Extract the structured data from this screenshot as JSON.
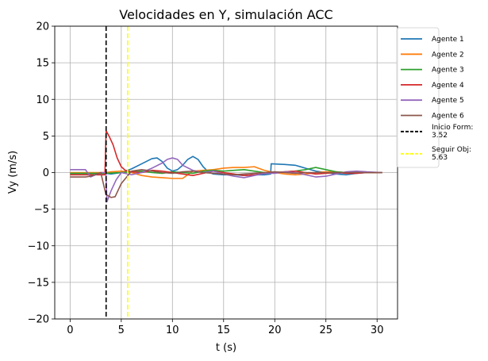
{
  "chart_data": {
    "type": "line",
    "title": "Velocidades en Y, simulación ACC",
    "xlabel": "t (s)",
    "ylabel": "Vy (m/s)",
    "xlim": [
      -1.5,
      32
    ],
    "ylim": [
      -20,
      20
    ],
    "xticks": [
      0,
      5,
      10,
      15,
      20,
      25,
      30
    ],
    "yticks": [
      -20,
      -15,
      -10,
      -5,
      0,
      5,
      10,
      15,
      20
    ],
    "xtick_labels": [
      "0",
      "5",
      "10",
      "15",
      "20",
      "25",
      "30"
    ],
    "ytick_labels": [
      "−20",
      "−15",
      "−10",
      "−5",
      "0",
      "5",
      "10",
      "15",
      "20"
    ],
    "grid": true,
    "legend_position": "outside-right-top",
    "series": [
      {
        "name": "Agente 1",
        "color": "#1f77b4",
        "x": [
          0,
          3.5,
          4.0,
          5.0,
          6.0,
          7.0,
          8.0,
          8.5,
          9.0,
          9.5,
          10.0,
          10.5,
          11.0,
          11.5,
          12.0,
          12.5,
          13.0,
          13.5,
          14.0,
          15.0,
          16.0,
          17.0,
          18.0,
          19.0,
          19.6,
          19.65,
          21.0,
          22.0,
          23.0,
          24.0,
          25.0,
          26.0,
          27.0,
          28.0,
          29.0,
          30.5
        ],
        "y": [
          -0.1,
          -0.1,
          -0.2,
          0.0,
          0.5,
          1.2,
          1.9,
          2.0,
          1.5,
          0.6,
          0.2,
          0.4,
          1.0,
          1.8,
          2.2,
          1.8,
          0.8,
          0.1,
          -0.2,
          -0.3,
          -0.3,
          -0.4,
          -0.3,
          -0.3,
          -0.2,
          1.2,
          1.1,
          1.0,
          0.6,
          0.2,
          0.0,
          -0.2,
          -0.3,
          -0.1,
          0.0,
          0.0
        ]
      },
      {
        "name": "Agente 2",
        "color": "#ff7f0e",
        "x": [
          0,
          3.5,
          4.0,
          5.0,
          6.0,
          7.0,
          8.0,
          9.0,
          10.0,
          11.0,
          12.0,
          13.0,
          14.0,
          15.0,
          16.0,
          17.0,
          18.0,
          19.0,
          20.0,
          21.0,
          22.0,
          23.0,
          24.0,
          25.0,
          26.0,
          27.0,
          28.0,
          29.0,
          30.5
        ],
        "y": [
          0.0,
          0.0,
          0.1,
          0.2,
          0.0,
          -0.4,
          -0.6,
          -0.7,
          -0.8,
          -0.8,
          0.2,
          0.3,
          0.4,
          0.6,
          0.7,
          0.7,
          0.8,
          0.3,
          0.0,
          -0.2,
          -0.3,
          -0.2,
          0.0,
          0.1,
          0.1,
          0.0,
          0.0,
          0.0,
          0.0
        ]
      },
      {
        "name": "Agente 3",
        "color": "#2ca02c",
        "x": [
          0,
          3.5,
          5.0,
          6.0,
          7.0,
          8.0,
          9.0,
          10.0,
          11.0,
          12.0,
          13.0,
          14.0,
          15.0,
          16.0,
          17.0,
          18.0,
          19.0,
          20.0,
          21.0,
          22.0,
          23.0,
          24.0,
          25.0,
          26.0,
          27.0,
          28.0,
          29.0,
          30.5
        ],
        "y": [
          -0.1,
          -0.1,
          0.0,
          0.1,
          0.2,
          0.0,
          -0.1,
          0.1,
          0.0,
          -0.1,
          0.2,
          0.3,
          0.2,
          0.3,
          0.4,
          0.2,
          0.0,
          0.0,
          0.1,
          0.2,
          0.4,
          0.7,
          0.4,
          0.1,
          0.0,
          0.0,
          0.0,
          0.0
        ]
      },
      {
        "name": "Agente 4",
        "color": "#d62728",
        "x": [
          0,
          3.4,
          3.52,
          3.8,
          4.2,
          4.6,
          5.0,
          5.4,
          6.0,
          7.0,
          8.0,
          9.0,
          10.0,
          11.0,
          12.0,
          13.0,
          14.0,
          15.0,
          16.0,
          17.0,
          18.0,
          19.0,
          20.0,
          21.0,
          22.0,
          23.0,
          24.0,
          25.0,
          26.0,
          27.0,
          28.0,
          29.0,
          30.5
        ],
        "y": [
          -0.3,
          -0.3,
          5.7,
          5.0,
          3.8,
          2.0,
          0.8,
          0.3,
          0.1,
          0.0,
          0.3,
          0.2,
          0.0,
          -0.2,
          -0.4,
          -0.1,
          0.2,
          0.0,
          -0.2,
          -0.4,
          -0.3,
          -0.1,
          0.0,
          0.1,
          0.2,
          0.0,
          -0.2,
          -0.1,
          0.0,
          -0.1,
          -0.1,
          0.0,
          0.0
        ]
      },
      {
        "name": "Agente 5",
        "color": "#9467bd",
        "x": [
          0,
          1.5,
          2.0,
          3.0,
          3.5,
          3.6,
          4.0,
          4.5,
          5.0,
          6.0,
          7.0,
          8.0,
          9.0,
          9.5,
          10.0,
          10.5,
          11.0,
          12.0,
          13.0,
          14.0,
          15.0,
          16.0,
          17.0,
          18.0,
          19.0,
          20.0,
          21.0,
          22.0,
          23.0,
          24.0,
          25.0,
          26.0,
          27.0,
          28.0,
          29.0,
          30.5
        ],
        "y": [
          0.4,
          0.4,
          -0.6,
          0.0,
          0.0,
          -4.0,
          -2.5,
          -1.0,
          0.0,
          -0.3,
          0.0,
          0.6,
          1.3,
          1.8,
          2.0,
          1.8,
          1.0,
          0.3,
          0.0,
          0.2,
          -0.2,
          -0.5,
          -0.7,
          -0.4,
          -0.1,
          -0.1,
          0.1,
          0.0,
          -0.3,
          -0.6,
          -0.5,
          -0.2,
          0.1,
          0.2,
          0.1,
          0.0
        ]
      },
      {
        "name": "Agente 6",
        "color": "#8c564b",
        "x": [
          0,
          1.5,
          2.0,
          3.0,
          3.5,
          4.0,
          4.4,
          5.0,
          6.0,
          7.0,
          8.0,
          9.0,
          10.0,
          11.0,
          12.0,
          13.0,
          14.0,
          15.0,
          16.0,
          17.0,
          18.0,
          19.0,
          20.0,
          21.0,
          22.0,
          23.0,
          24.0,
          25.0,
          26.0,
          27.0,
          28.0,
          29.0,
          30.5
        ],
        "y": [
          -0.6,
          -0.6,
          -0.5,
          0.0,
          -3.0,
          -3.4,
          -3.3,
          -1.5,
          0.2,
          0.4,
          0.2,
          0.0,
          -0.1,
          0.1,
          0.2,
          0.0,
          -0.1,
          -0.2,
          -0.3,
          -0.2,
          -0.1,
          0.0,
          0.1,
          0.0,
          -0.1,
          0.0,
          0.0,
          0.0,
          0.0,
          0.0,
          0.0,
          0.0,
          0.0
        ]
      }
    ],
    "vlines": [
      {
        "name": "Inicio Form:\n3.52",
        "x": 3.52,
        "color": "#000000",
        "style": "dashed"
      },
      {
        "name": "Seguir Obj:\n5.63",
        "x": 5.63,
        "color": "#ffff00",
        "style": "dashed"
      }
    ]
  }
}
